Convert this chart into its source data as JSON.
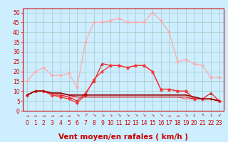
{
  "background_color": "#cceeff",
  "grid_color": "#aacccc",
  "x_labels": [
    "0",
    "1",
    "2",
    "3",
    "4",
    "5",
    "6",
    "7",
    "8",
    "9",
    "10",
    "11",
    "12",
    "13",
    "14",
    "15",
    "16",
    "17",
    "18",
    "19",
    "20",
    "21",
    "22",
    "23"
  ],
  "xlabel": "Vent moyen/en rafales ( km/h )",
  "ylabel_ticks": [
    0,
    5,
    10,
    15,
    20,
    25,
    30,
    35,
    40,
    45,
    50
  ],
  "xlim": [
    -0.5,
    23.5
  ],
  "ylim": [
    -2,
    52
  ],
  "plot_ylim": [
    0,
    52
  ],
  "lines": [
    {
      "y": [
        15,
        20,
        22,
        18,
        18,
        19,
        12,
        35,
        45,
        45,
        46,
        47,
        45,
        45,
        45,
        50,
        46,
        40,
        25,
        26,
        24,
        23,
        17,
        17
      ],
      "color": "#ffaaaa",
      "lw": 0.9,
      "marker": "D",
      "ms": 2.0,
      "zorder": 2
    },
    {
      "y": [
        8,
        10,
        10,
        8,
        8,
        7,
        5,
        9,
        15,
        24,
        23,
        23,
        22,
        23,
        23,
        20,
        11,
        11,
        10,
        10,
        6,
        6,
        9,
        5
      ],
      "color": "#dd2222",
      "lw": 0.9,
      "marker": "^",
      "ms": 2.5,
      "zorder": 3
    },
    {
      "y": [
        8,
        10,
        10,
        8,
        7,
        6,
        4,
        8,
        16,
        20,
        23,
        23,
        22,
        23,
        23,
        20,
        11,
        11,
        10,
        10,
        6,
        6,
        6,
        5
      ],
      "color": "#ff3333",
      "lw": 0.9,
      "marker": "D",
      "ms": 2.0,
      "zorder": 3
    },
    {
      "y": [
        8,
        10,
        10,
        9,
        9,
        8,
        8,
        8,
        8,
        8,
        8,
        8,
        8,
        8,
        8,
        8,
        8,
        8,
        8,
        8,
        7,
        6,
        6,
        5
      ],
      "color": "#990000",
      "lw": 1.2,
      "marker": null,
      "ms": 0,
      "zorder": 4
    },
    {
      "y": [
        8,
        10,
        10,
        9,
        9,
        8,
        7,
        7,
        7,
        7,
        7,
        7,
        7,
        7,
        7,
        7,
        7,
        7,
        7,
        7,
        6,
        6,
        6,
        5
      ],
      "color": "#cc2222",
      "lw": 0.9,
      "marker": null,
      "ms": 0,
      "zorder": 3
    },
    {
      "y": [
        8,
        10,
        10,
        8,
        8,
        7,
        7,
        7,
        7,
        7,
        7,
        7,
        7,
        7,
        7,
        7,
        7,
        7,
        7,
        6,
        6,
        6,
        6,
        5
      ],
      "color": "#ff6666",
      "lw": 0.9,
      "marker": null,
      "ms": 0,
      "zorder": 2
    }
  ],
  "arrow_symbols": [
    "→",
    "→",
    "→",
    "→",
    "→",
    "→",
    "↘",
    "↗",
    "↘",
    "↘",
    "↘",
    "↘",
    "↘",
    "↘",
    "↘",
    "↘",
    "↘",
    "→",
    "→",
    "↘",
    "↓",
    "↖",
    "↓",
    "↙"
  ],
  "axis_label_color": "#cc0000",
  "tick_color": "#cc0000",
  "tick_fontsize": 5.5,
  "xlabel_fontsize": 7.5,
  "spine_color": "#cc0000"
}
